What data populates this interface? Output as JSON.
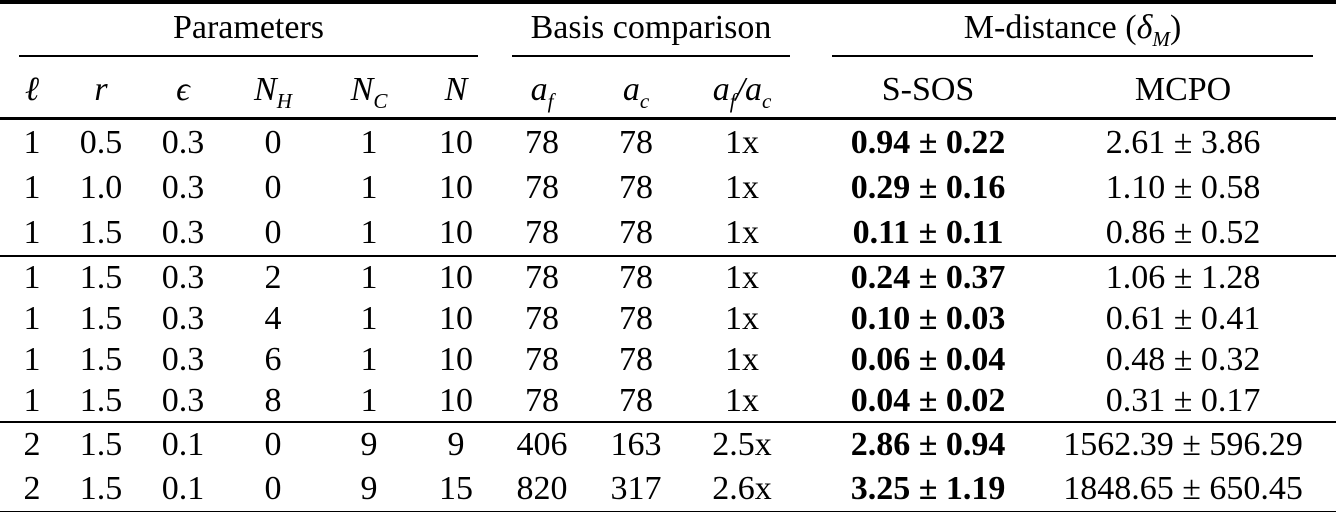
{
  "table": {
    "groups": {
      "parameters": {
        "label": "Parameters"
      },
      "basis": {
        "label": "Basis comparison"
      },
      "mdistance": {
        "prefix": "M-distance (",
        "symbol": "δ",
        "sub": "M",
        "suffix": ")"
      }
    },
    "columns": {
      "ell": {
        "base": "ℓ"
      },
      "r": {
        "base": "r"
      },
      "epsilon": {
        "base": "ϵ"
      },
      "nh": {
        "base": "N",
        "sub": "H"
      },
      "nc": {
        "base": "N",
        "sub": "C"
      },
      "n": {
        "base": "N"
      },
      "af": {
        "base": "a",
        "sub": "f"
      },
      "ac": {
        "base": "a",
        "sub": "c"
      },
      "ratio": {
        "n1": "a",
        "s1": "f",
        "slash": "/",
        "n2": "a",
        "s2": "c"
      },
      "ssos": {
        "label": "S-SOS"
      },
      "mcpo": {
        "label": "MCPO"
      }
    },
    "rows": [
      {
        "group": 1,
        "cells": [
          "1",
          "0.5",
          "0.3",
          "0",
          "1",
          "10",
          "78",
          "78",
          "1x",
          "0.94 ± 0.22",
          "2.61 ± 3.86"
        ]
      },
      {
        "group": 1,
        "cells": [
          "1",
          "1.0",
          "0.3",
          "0",
          "1",
          "10",
          "78",
          "78",
          "1x",
          "0.29 ± 0.16",
          "1.10 ± 0.58"
        ]
      },
      {
        "group": 1,
        "cells": [
          "1",
          "1.5",
          "0.3",
          "0",
          "1",
          "10",
          "78",
          "78",
          "1x",
          "0.11 ± 0.11",
          "0.86 ± 0.52"
        ]
      },
      {
        "group": 2,
        "cells": [
          "1",
          "1.5",
          "0.3",
          "2",
          "1",
          "10",
          "78",
          "78",
          "1x",
          "0.24 ± 0.37",
          "1.06 ± 1.28"
        ]
      },
      {
        "group": 2,
        "cells": [
          "1",
          "1.5",
          "0.3",
          "4",
          "1",
          "10",
          "78",
          "78",
          "1x",
          "0.10 ± 0.03",
          "0.61 ± 0.41"
        ]
      },
      {
        "group": 2,
        "cells": [
          "1",
          "1.5",
          "0.3",
          "6",
          "1",
          "10",
          "78",
          "78",
          "1x",
          "0.06 ± 0.04",
          "0.48 ± 0.32"
        ]
      },
      {
        "group": 2,
        "cells": [
          "1",
          "1.5",
          "0.3",
          "8",
          "1",
          "10",
          "78",
          "78",
          "1x",
          "0.04 ± 0.02",
          "0.31 ± 0.17"
        ]
      },
      {
        "group": 3,
        "cells": [
          "2",
          "1.5",
          "0.1",
          "0",
          "9",
          "9",
          "406",
          "163",
          "2.5x",
          "2.86 ± 0.94",
          "1562.39 ± 596.29"
        ]
      },
      {
        "group": 3,
        "cells": [
          "2",
          "1.5",
          "0.1",
          "0",
          "9",
          "15",
          "820",
          "317",
          "2.6x",
          "3.25 ± 1.19",
          "1848.65 ± 650.45"
        ]
      }
    ]
  }
}
